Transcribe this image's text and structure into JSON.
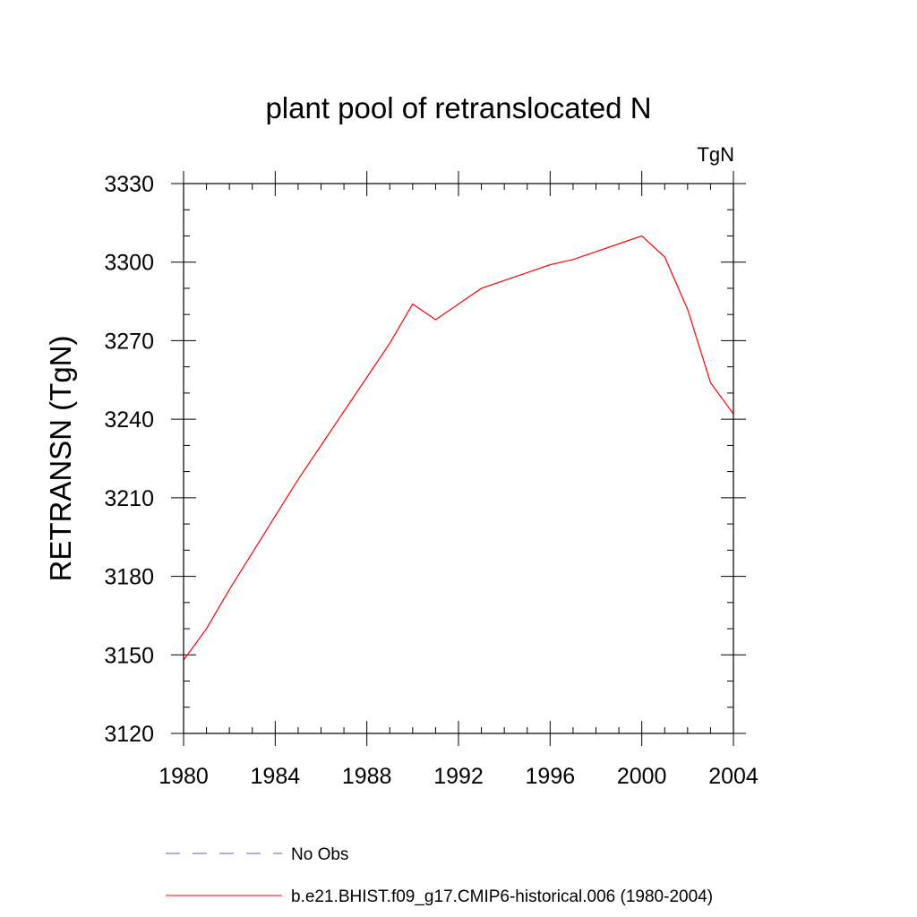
{
  "chart_data": {
    "type": "line",
    "title": "plant pool of retranslocated N",
    "units_label": "TgN",
    "ylabel": "RETRANSN  (TgN)",
    "xlabel": "",
    "xlim": [
      1980,
      2004
    ],
    "ylim": [
      3120,
      3330
    ],
    "x_ticks": [
      1980,
      1984,
      1988,
      1992,
      1996,
      2000,
      2004
    ],
    "y_ticks": [
      3120,
      3150,
      3180,
      3210,
      3240,
      3270,
      3300,
      3330
    ],
    "x_minor_step": 1,
    "y_minor_step": 10,
    "grid": false,
    "legend_position": "bottom",
    "series": [
      {
        "name": "No Obs",
        "color": "#5b5bd6",
        "dash": "dashed",
        "x": [],
        "y": []
      },
      {
        "name": "b.e21.BHIST.f09_g17.CMIP6-historical.006 (1980-2004)",
        "color": "#ff0000",
        "dash": "solid",
        "x": [
          1980,
          1981,
          1982,
          1983,
          1984,
          1985,
          1986,
          1987,
          1988,
          1989,
          1990,
          1991,
          1992,
          1993,
          1994,
          1995,
          1996,
          1997,
          1998,
          1999,
          2000,
          2001,
          2002,
          2003,
          2004
        ],
        "y": [
          3148,
          3160,
          3175,
          3189,
          3203,
          3217,
          3230,
          3243,
          3256,
          3269,
          3284,
          3278,
          3284,
          3290,
          3293,
          3296,
          3299,
          3301,
          3304,
          3307,
          3310,
          3302,
          3282,
          3254,
          3242
        ]
      }
    ]
  }
}
